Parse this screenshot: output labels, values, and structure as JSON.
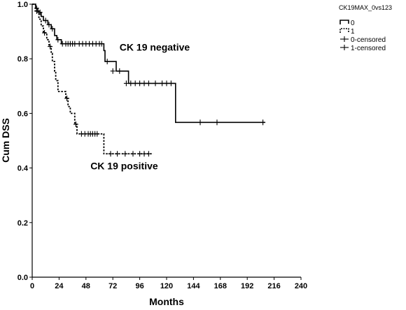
{
  "chart_data": {
    "type": "line",
    "title": "",
    "xlabel": "Months",
    "ylabel": "Cum DSS",
    "xlim": [
      0,
      240
    ],
    "ylim": [
      0.0,
      1.0
    ],
    "x_ticks": [
      0,
      24,
      48,
      72,
      96,
      120,
      144,
      168,
      192,
      216,
      240
    ],
    "y_ticks": [
      "0.0",
      "0.2",
      "0.4",
      "0.6",
      "0.8",
      "1.0"
    ],
    "grid": false,
    "legend": {
      "title": "CK19MAX_0vs123",
      "position": "top-right",
      "items": [
        {
          "label": "0",
          "symbol": "solid-step"
        },
        {
          "label": "1",
          "symbol": "dotted-step"
        },
        {
          "label": "0-censored",
          "symbol": "plus"
        },
        {
          "label": "1-censored",
          "symbol": "plus"
        }
      ]
    },
    "annotations": [
      {
        "text": "CK 19 negative",
        "x": 78,
        "y": 0.83
      },
      {
        "text": "CK 19 positive",
        "x": 52,
        "y": 0.395
      }
    ],
    "series": [
      {
        "name": "0",
        "style": "solid",
        "color": "#000000",
        "steps": [
          [
            0,
            1.0
          ],
          [
            3,
            0.985
          ],
          [
            5,
            0.97
          ],
          [
            8,
            0.955
          ],
          [
            10,
            0.94
          ],
          [
            14,
            0.925
          ],
          [
            17,
            0.91
          ],
          [
            20,
            0.885
          ],
          [
            22,
            0.87
          ],
          [
            26,
            0.855
          ],
          [
            64,
            0.83
          ],
          [
            65,
            0.79
          ],
          [
            75,
            0.755
          ],
          [
            86,
            0.71
          ],
          [
            128,
            0.567
          ],
          [
            208,
            0.567
          ]
        ],
        "censored": [
          [
            4,
            0.985
          ],
          [
            7,
            0.97
          ],
          [
            12,
            0.94
          ],
          [
            15,
            0.925
          ],
          [
            18,
            0.91
          ],
          [
            23,
            0.87
          ],
          [
            27,
            0.855
          ],
          [
            30,
            0.855
          ],
          [
            32,
            0.855
          ],
          [
            34,
            0.855
          ],
          [
            36,
            0.855
          ],
          [
            38,
            0.855
          ],
          [
            42,
            0.855
          ],
          [
            45,
            0.855
          ],
          [
            48,
            0.855
          ],
          [
            51,
            0.855
          ],
          [
            54,
            0.855
          ],
          [
            57,
            0.855
          ],
          [
            60,
            0.855
          ],
          [
            62,
            0.855
          ],
          [
            67,
            0.79
          ],
          [
            72,
            0.755
          ],
          [
            78,
            0.755
          ],
          [
            84,
            0.71
          ],
          [
            88,
            0.71
          ],
          [
            92,
            0.71
          ],
          [
            96,
            0.71
          ],
          [
            100,
            0.71
          ],
          [
            104,
            0.71
          ],
          [
            110,
            0.71
          ],
          [
            116,
            0.71
          ],
          [
            120,
            0.71
          ],
          [
            124,
            0.71
          ],
          [
            150,
            0.567
          ],
          [
            165,
            0.567
          ],
          [
            206,
            0.567
          ]
        ]
      },
      {
        "name": "1",
        "style": "dotted",
        "color": "#000000",
        "steps": [
          [
            0,
            1.0
          ],
          [
            3,
            0.975
          ],
          [
            6,
            0.945
          ],
          [
            8,
            0.92
          ],
          [
            10,
            0.895
          ],
          [
            13,
            0.87
          ],
          [
            15,
            0.845
          ],
          [
            17,
            0.82
          ],
          [
            18,
            0.79
          ],
          [
            20,
            0.755
          ],
          [
            21,
            0.72
          ],
          [
            23,
            0.68
          ],
          [
            30,
            0.655
          ],
          [
            32,
            0.625
          ],
          [
            34,
            0.6
          ],
          [
            38,
            0.56
          ],
          [
            40,
            0.525
          ],
          [
            46,
            0.525
          ],
          [
            58,
            0.525
          ],
          [
            64,
            0.452
          ],
          [
            108,
            0.452
          ]
        ],
        "censored": [
          [
            4,
            0.975
          ],
          [
            11,
            0.895
          ],
          [
            16,
            0.845
          ],
          [
            31,
            0.655
          ],
          [
            39,
            0.56
          ],
          [
            44,
            0.525
          ],
          [
            47,
            0.525
          ],
          [
            50,
            0.525
          ],
          [
            52,
            0.525
          ],
          [
            54,
            0.525
          ],
          [
            56,
            0.525
          ],
          [
            58,
            0.525
          ],
          [
            70,
            0.452
          ],
          [
            76,
            0.452
          ],
          [
            83,
            0.452
          ],
          [
            90,
            0.452
          ],
          [
            96,
            0.452
          ],
          [
            100,
            0.452
          ],
          [
            104,
            0.452
          ]
        ]
      }
    ]
  }
}
